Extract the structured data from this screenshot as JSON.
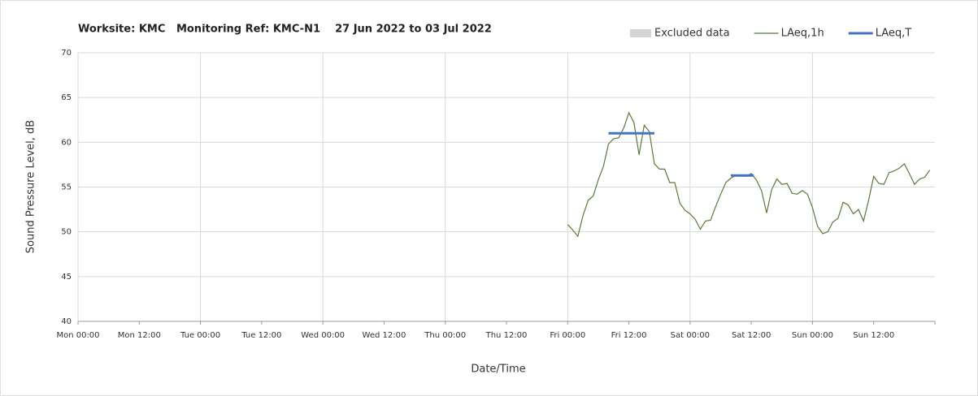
{
  "chart_data": {
    "type": "line",
    "title": "Worksite: KMC   Monitoring Ref: KMC-N1    27 Jun 2022 to 03 Jul 2022",
    "xlabel": "Date/Time",
    "ylabel": "Sound Pressure Level, dB",
    "xlim": [
      0,
      168
    ],
    "xticks": [
      {
        "value": 0,
        "label": "Mon 00:00"
      },
      {
        "value": 12,
        "label": "Mon 12:00"
      },
      {
        "value": 24,
        "label": "Tue 00:00"
      },
      {
        "value": 36,
        "label": "Tue 12:00"
      },
      {
        "value": 48,
        "label": "Wed 00:00"
      },
      {
        "value": 60,
        "label": "Wed 12:00"
      },
      {
        "value": 72,
        "label": "Thu 00:00"
      },
      {
        "value": 84,
        "label": "Thu 12:00"
      },
      {
        "value": 96,
        "label": "Fri 00:00"
      },
      {
        "value": 108,
        "label": "Fri 12:00"
      },
      {
        "value": 120,
        "label": "Sat 00:00"
      },
      {
        "value": 132,
        "label": "Sat 12:00"
      },
      {
        "value": 144,
        "label": "Sun 00:00"
      },
      {
        "value": 156,
        "label": "Sun 12:00"
      }
    ],
    "ylim": [
      40,
      70
    ],
    "yticks": [
      40,
      45,
      50,
      55,
      60,
      65,
      70
    ],
    "grid": true,
    "legend": "top-right",
    "series": [
      {
        "name": "Excluded data",
        "color": "#d4d4d4",
        "kind": "box",
        "x": [],
        "values": []
      },
      {
        "name": "LAeq,1h",
        "color": "#5a7a3a",
        "kind": "line",
        "x": [
          96,
          97,
          98,
          99,
          100,
          101,
          102,
          103,
          104,
          105,
          106,
          107,
          108,
          109,
          110,
          111,
          112,
          113,
          114,
          115,
          116,
          117,
          118,
          119,
          120,
          121,
          122,
          123,
          124,
          125,
          126,
          127,
          128,
          129,
          130,
          131,
          132,
          133,
          134,
          135,
          136,
          137,
          138,
          139,
          140,
          141,
          142,
          143,
          144,
          145,
          146,
          147,
          148,
          149,
          150,
          151,
          152,
          153,
          154,
          155,
          156,
          157,
          158,
          159,
          160,
          161,
          162,
          163,
          164,
          165,
          166,
          167
        ],
        "values": [
          50.8,
          50.2,
          49.5,
          51.8,
          53.5,
          54.0,
          55.8,
          57.3,
          59.8,
          60.4,
          60.5,
          61.6,
          63.3,
          62.2,
          58.6,
          61.9,
          61.2,
          57.6,
          57.0,
          57.0,
          55.5,
          55.5,
          53.2,
          52.4,
          52.0,
          51.4,
          50.3,
          51.2,
          51.3,
          52.8,
          54.2,
          55.5,
          56.0,
          56.3,
          56.3,
          56.2,
          56.5,
          55.8,
          54.6,
          52.1,
          54.7,
          55.9,
          55.3,
          55.4,
          54.3,
          54.2,
          54.6,
          54.2,
          52.7,
          50.6,
          49.8,
          50.0,
          51.1,
          51.5,
          53.3,
          53.0,
          52.0,
          52.5,
          51.2,
          53.5,
          56.2,
          55.4,
          55.3,
          56.6,
          56.8,
          57.1,
          57.6,
          56.5,
          55.3,
          55.9,
          56.1,
          56.9
        ]
      },
      {
        "name": "LAeq,T",
        "color": "#4472c4",
        "kind": "line",
        "width": 3,
        "x": [
          104,
          113,
          120,
          128,
          132.5
        ],
        "values": [
          61.0,
          61.0,
          null,
          56.3,
          56.3
        ]
      }
    ]
  }
}
